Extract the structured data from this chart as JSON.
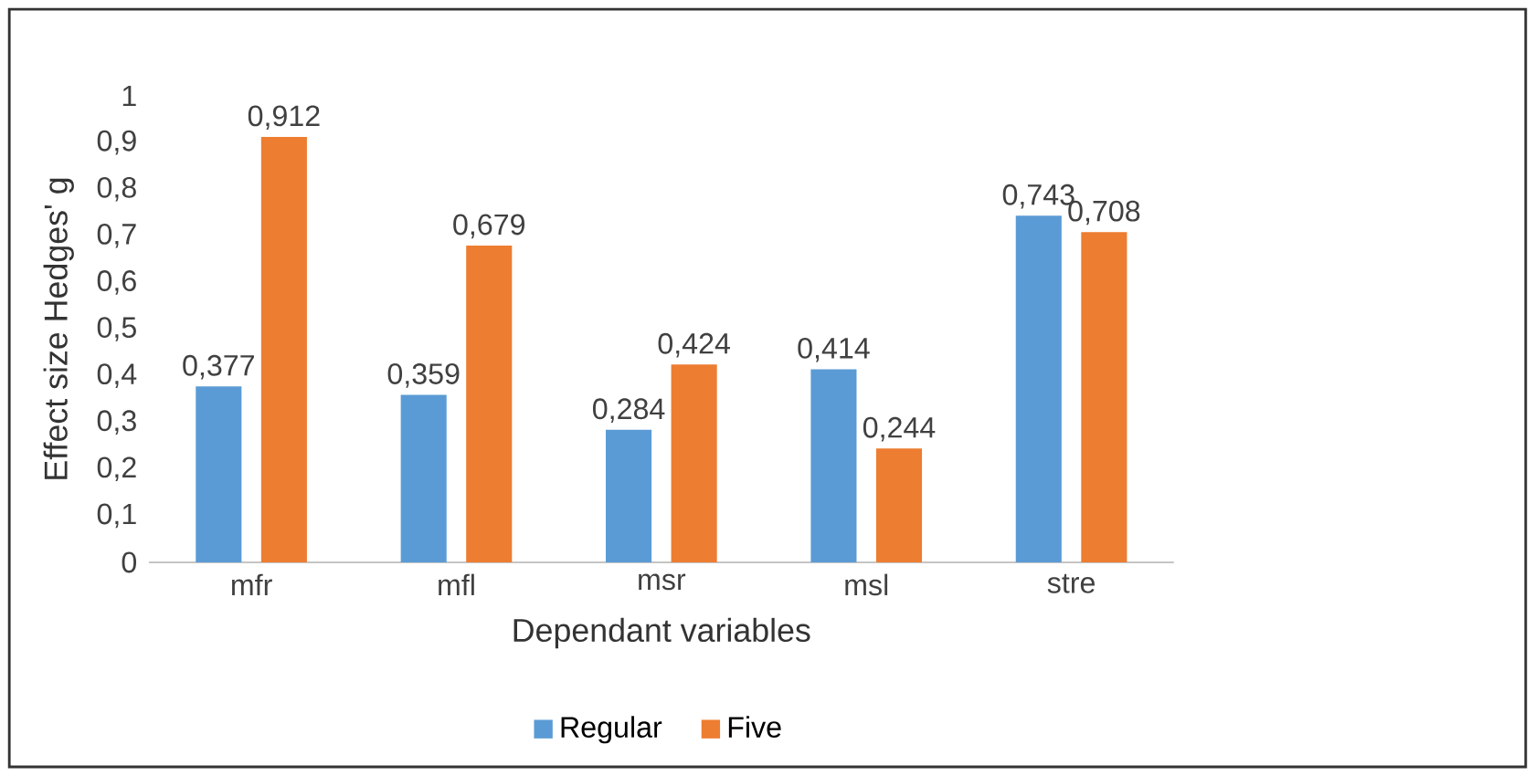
{
  "chart_data": {
    "type": "bar",
    "xlabel": "Dependant variables",
    "ylabel": "Effect size Hedges' g",
    "categories": [
      "mfr",
      "mfl",
      "msr",
      "msl",
      "stre"
    ],
    "series": [
      {
        "name": "Regular",
        "color": "#5b9bd5",
        "values": [
          0.377,
          0.359,
          0.284,
          0.414,
          0.743
        ],
        "value_labels": [
          "0,377",
          "0,359",
          "0,284",
          "0,414",
          "0,743"
        ]
      },
      {
        "name": "Five",
        "color": "#ed7d31",
        "values": [
          0.912,
          0.679,
          0.424,
          0.244,
          0.708
        ],
        "value_labels": [
          "0,912",
          "0,679",
          "0,424",
          "0,244",
          "0,708"
        ]
      }
    ],
    "ylim": [
      0,
      1
    ],
    "yticks": [
      0,
      {
        "value": 0.1,
        "label": "0,1"
      },
      {
        "value": 0.2,
        "label": "0,2"
      },
      {
        "value": 0.3,
        "label": "0,3"
      },
      {
        "value": 0.4,
        "label": "0,4"
      },
      {
        "value": 0.5,
        "label": "0,5"
      },
      {
        "value": 0.6,
        "label": "0,6"
      },
      {
        "value": 0.7,
        "label": "0,7"
      },
      {
        "value": 0.8,
        "label": "0,8"
      },
      {
        "value": 0.9,
        "label": "0,9"
      },
      1
    ],
    "grid": false,
    "legend": "bottom"
  }
}
